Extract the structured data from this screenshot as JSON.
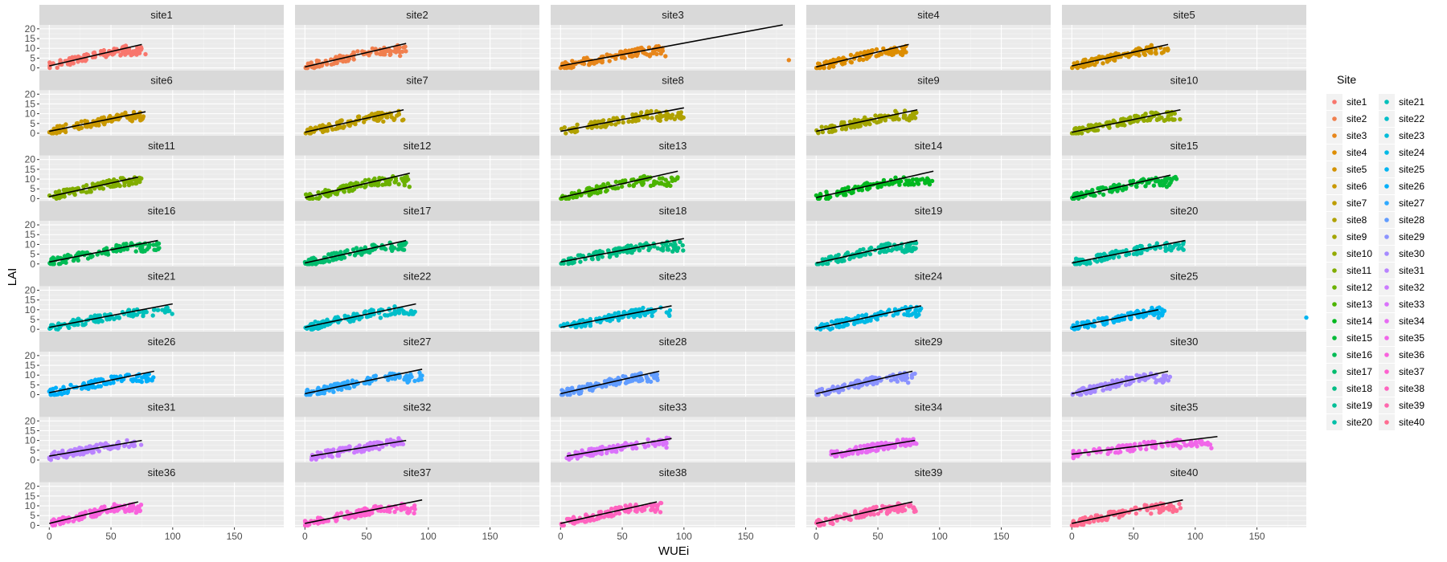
{
  "chart_data": {
    "type": "scatter",
    "layout": "facet_wrap",
    "ncol": 5,
    "xlabel": "WUEi",
    "ylabel": "LAI",
    "x_ticks": [
      "0",
      "50",
      "100",
      "150"
    ],
    "y_ticks": [
      "0",
      "5",
      "10",
      "15",
      "20"
    ],
    "xlim": [
      -8,
      190
    ],
    "ylim": [
      -1,
      22
    ],
    "grid": true,
    "legend": {
      "title": "Site",
      "position": "right",
      "columns": 2
    },
    "trend_line_color": "#000000",
    "facets": [
      {
        "name": "site1",
        "color": "#F8766D",
        "x_max": 75,
        "line": [
          [
            0,
            1
          ],
          [
            75,
            12
          ]
        ],
        "outliers": [
          [
            78,
            7
          ]
        ]
      },
      {
        "name": "site2",
        "color": "#F07F4E",
        "x_max": 82,
        "line": [
          [
            0,
            0.5
          ],
          [
            82,
            12.5
          ]
        ],
        "outliers": []
      },
      {
        "name": "site3",
        "color": "#E7861B",
        "x_max": 85,
        "line": [
          [
            0,
            1
          ],
          [
            180,
            22
          ]
        ],
        "outliers": [
          [
            185,
            4
          ],
          [
            85,
            6
          ]
        ]
      },
      {
        "name": "site4",
        "color": "#DD8D00",
        "x_max": 75,
        "line": [
          [
            0,
            0.5
          ],
          [
            75,
            12
          ]
        ],
        "outliers": []
      },
      {
        "name": "site5",
        "color": "#D39200",
        "x_max": 78,
        "line": [
          [
            0,
            1
          ],
          [
            78,
            12
          ]
        ],
        "outliers": []
      },
      {
        "name": "site6",
        "color": "#C99800",
        "x_max": 78,
        "line": [
          [
            0,
            1
          ],
          [
            78,
            11
          ]
        ],
        "outliers": []
      },
      {
        "name": "site7",
        "color": "#BD9D00",
        "x_max": 80,
        "line": [
          [
            0,
            0.5
          ],
          [
            80,
            12
          ]
        ],
        "outliers": []
      },
      {
        "name": "site8",
        "color": "#B0A100",
        "x_max": 100,
        "line": [
          [
            0,
            1
          ],
          [
            100,
            13
          ]
        ],
        "outliers": []
      },
      {
        "name": "site9",
        "color": "#A3A500",
        "x_max": 82,
        "line": [
          [
            0,
            1
          ],
          [
            82,
            12
          ]
        ],
        "outliers": []
      },
      {
        "name": "site10",
        "color": "#93AA00",
        "x_max": 88,
        "line": [
          [
            0,
            0.5
          ],
          [
            88,
            12
          ]
        ],
        "outliers": []
      },
      {
        "name": "site11",
        "color": "#81AD00",
        "x_max": 75,
        "line": [
          [
            0,
            1
          ],
          [
            72,
            11
          ]
        ],
        "outliers": []
      },
      {
        "name": "site12",
        "color": "#6BB100",
        "x_max": 85,
        "line": [
          [
            0,
            0.5
          ],
          [
            85,
            13
          ]
        ],
        "outliers": []
      },
      {
        "name": "site13",
        "color": "#4CB400",
        "x_max": 95,
        "line": [
          [
            0,
            0.5
          ],
          [
            95,
            14
          ]
        ],
        "outliers": []
      },
      {
        "name": "site14",
        "color": "#00B81F",
        "x_max": 95,
        "line": [
          [
            0,
            0.5
          ],
          [
            95,
            14
          ]
        ],
        "outliers": []
      },
      {
        "name": "site15",
        "color": "#00BA38",
        "x_max": 85,
        "line": [
          [
            0,
            0.5
          ],
          [
            80,
            12
          ]
        ],
        "outliers": []
      },
      {
        "name": "site16",
        "color": "#00BB55",
        "x_max": 90,
        "line": [
          [
            0,
            1
          ],
          [
            88,
            12
          ]
        ],
        "outliers": []
      },
      {
        "name": "site17",
        "color": "#00BC6E",
        "x_max": 82,
        "line": [
          [
            0,
            0.5
          ],
          [
            82,
            12
          ]
        ],
        "outliers": []
      },
      {
        "name": "site18",
        "color": "#00BD84",
        "x_max": 100,
        "line": [
          [
            0,
            1
          ],
          [
            100,
            13
          ]
        ],
        "outliers": []
      },
      {
        "name": "site19",
        "color": "#00BF97",
        "x_max": 82,
        "line": [
          [
            0,
            0.5
          ],
          [
            82,
            12
          ]
        ],
        "outliers": []
      },
      {
        "name": "site20",
        "color": "#00C0A9",
        "x_max": 92,
        "line": [
          [
            0,
            0.5
          ],
          [
            92,
            12
          ]
        ],
        "outliers": []
      },
      {
        "name": "site21",
        "color": "#00C0BA",
        "x_max": 100,
        "line": [
          [
            0,
            1
          ],
          [
            100,
            13
          ]
        ],
        "outliers": []
      },
      {
        "name": "site22",
        "color": "#00BEC9",
        "x_max": 90,
        "line": [
          [
            0,
            1
          ],
          [
            90,
            13
          ]
        ],
        "outliers": []
      },
      {
        "name": "site23",
        "color": "#00BCD8",
        "x_max": 90,
        "line": [
          [
            0,
            1
          ],
          [
            90,
            12
          ]
        ],
        "outliers": []
      },
      {
        "name": "site24",
        "color": "#00B9E5",
        "x_max": 85,
        "line": [
          [
            0,
            0.5
          ],
          [
            85,
            12
          ]
        ],
        "outliers": []
      },
      {
        "name": "site25",
        "color": "#00B5F1",
        "x_max": 75,
        "line": [
          [
            0,
            1
          ],
          [
            70,
            10
          ]
        ],
        "outliers": [
          [
            190,
            6
          ]
        ]
      },
      {
        "name": "site26",
        "color": "#00AFFA",
        "x_max": 85,
        "line": [
          [
            0,
            1
          ],
          [
            85,
            12
          ]
        ],
        "outliers": []
      },
      {
        "name": "site27",
        "color": "#2EA9FF",
        "x_max": 95,
        "line": [
          [
            0,
            0.5
          ],
          [
            95,
            13
          ]
        ],
        "outliers": []
      },
      {
        "name": "site28",
        "color": "#619CFF",
        "x_max": 80,
        "line": [
          [
            0,
            0.5
          ],
          [
            80,
            12
          ]
        ],
        "outliers": []
      },
      {
        "name": "site29",
        "color": "#8B93FF",
        "x_max": 80,
        "line": [
          [
            0,
            0.5
          ],
          [
            78,
            12
          ]
        ],
        "outliers": []
      },
      {
        "name": "site30",
        "color": "#A58AFF",
        "x_max": 80,
        "line": [
          [
            0,
            0.5
          ],
          [
            78,
            12
          ]
        ],
        "outliers": []
      },
      {
        "name": "site31",
        "color": "#B983FF",
        "x_max": 75,
        "line": [
          [
            0,
            2
          ],
          [
            75,
            10
          ]
        ],
        "outliers": []
      },
      {
        "name": "site32",
        "color": "#CB7BFF",
        "x_max": 80,
        "line": [
          [
            5,
            2
          ],
          [
            82,
            10
          ]
        ],
        "outliers": []
      },
      {
        "name": "site33",
        "color": "#DA72FB",
        "x_max": 88,
        "line": [
          [
            5,
            2
          ],
          [
            90,
            11
          ]
        ],
        "outliers": []
      },
      {
        "name": "site34",
        "color": "#E76BF3",
        "x_max": 82,
        "line": [
          [
            12,
            3
          ],
          [
            80,
            10
          ]
        ],
        "outliers": []
      },
      {
        "name": "site35",
        "color": "#F166E9",
        "x_max": 115,
        "line": [
          [
            0,
            3
          ],
          [
            118,
            12
          ]
        ],
        "outliers": []
      },
      {
        "name": "site36",
        "color": "#F962DD",
        "x_max": 75,
        "line": [
          [
            0,
            1
          ],
          [
            72,
            12
          ]
        ],
        "outliers": []
      },
      {
        "name": "site37",
        "color": "#FE61CF",
        "x_max": 90,
        "line": [
          [
            0,
            1
          ],
          [
            95,
            13
          ]
        ],
        "outliers": []
      },
      {
        "name": "site38",
        "color": "#FF63BF",
        "x_max": 82,
        "line": [
          [
            0,
            1
          ],
          [
            78,
            12
          ]
        ],
        "outliers": []
      },
      {
        "name": "site39",
        "color": "#FF67AE",
        "x_max": 82,
        "line": [
          [
            0,
            1
          ],
          [
            78,
            12
          ]
        ],
        "outliers": []
      },
      {
        "name": "site40",
        "color": "#FF6C90",
        "x_max": 88,
        "line": [
          [
            0,
            1
          ],
          [
            90,
            13
          ]
        ],
        "outliers": []
      }
    ]
  }
}
